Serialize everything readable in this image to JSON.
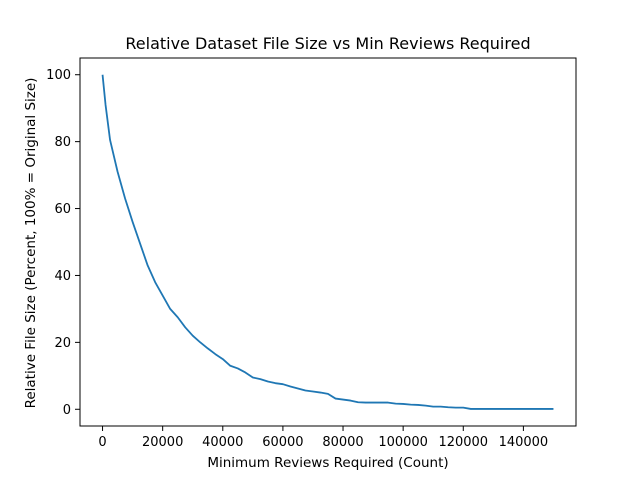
{
  "chart_data": {
    "type": "line",
    "title": "Relative Dataset File Size vs Min Reviews Required",
    "xlabel": "Minimum Reviews Required (Count)",
    "ylabel": "Relative File Size (Percent, 100% = Original Size)",
    "xlim": [
      -7500,
      157500
    ],
    "ylim": [
      -5,
      105
    ],
    "xticks": [
      0,
      20000,
      40000,
      60000,
      80000,
      100000,
      120000,
      140000
    ],
    "xtick_labels": [
      "0",
      "20000",
      "40000",
      "60000",
      "80000",
      "100000",
      "120000",
      "140000"
    ],
    "yticks": [
      0,
      20,
      40,
      60,
      80,
      100
    ],
    "ytick_labels": [
      "0",
      "20",
      "40",
      "60",
      "80",
      "100"
    ],
    "grid": false,
    "legend": null,
    "series": [
      {
        "color": "#1f77b4",
        "x": [
          0,
          1000,
          2500,
          5000,
          7500,
          10000,
          12500,
          15000,
          17500,
          20000,
          22500,
          25000,
          27500,
          30000,
          32500,
          35000,
          37500,
          40000,
          42500,
          45000,
          47500,
          50000,
          52500,
          55000,
          57500,
          60000,
          62500,
          65000,
          67500,
          70000,
          72500,
          75000,
          77500,
          80000,
          82500,
          85000,
          87500,
          90000,
          92500,
          95000,
          97500,
          100000,
          102500,
          105000,
          107500,
          110000,
          112500,
          115000,
          117500,
          120000,
          122500,
          125000,
          130000,
          135000,
          140000,
          145000,
          150000
        ],
        "y": [
          100,
          91,
          80.5,
          71,
          63,
          56,
          49.5,
          43,
          38,
          34,
          30,
          27.5,
          24.5,
          22,
          20,
          18.2,
          16.5,
          15,
          13,
          12.2,
          11,
          9.5,
          9,
          8.3,
          7.8,
          7.5,
          6.8,
          6.2,
          5.6,
          5.3,
          5,
          4.6,
          3.2,
          2.9,
          2.6,
          2.1,
          2,
          2,
          2,
          2,
          1.7,
          1.6,
          1.4,
          1.3,
          1.1,
          0.8,
          0.8,
          0.6,
          0.5,
          0.5,
          0.1,
          0.1,
          0.1,
          0.1,
          0.1,
          0.1,
          0.1
        ]
      }
    ]
  }
}
